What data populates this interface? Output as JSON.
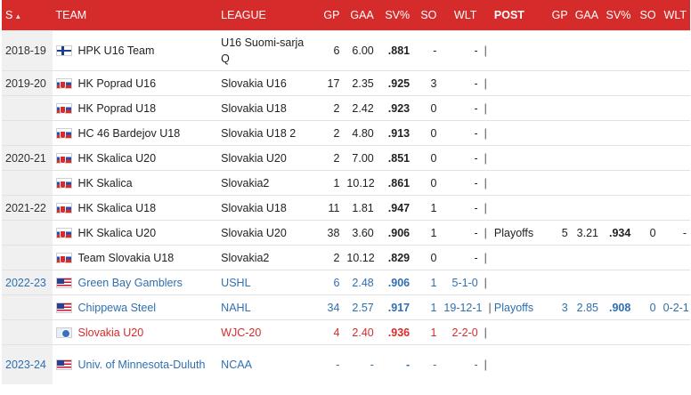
{
  "headers": {
    "season": "S",
    "team": "TEAM",
    "league": "LEAGUE",
    "gp": "GP",
    "gaa": "GAA",
    "svp": "SV%",
    "so": "SO",
    "wlt": "WLT",
    "post": "POST",
    "post_gp": "GP",
    "post_gaa": "GAA",
    "post_svp": "SV%",
    "post_so": "SO",
    "post_wlt": "WLT"
  },
  "colors": {
    "header_bg": "#d62b2b",
    "link_blue": "#2e6fb0",
    "highlight_red": "#d62b2b"
  },
  "rows": [
    {
      "season": "2018-19",
      "flag": "fin",
      "team": "HPK U16 Team",
      "league": "U16 Suomi-sarja Q",
      "gp": "6",
      "gaa": "6.00",
      "svp": ".881",
      "so": "-",
      "wlt": "-",
      "post": "",
      "pgp": "",
      "pgaa": "",
      "psvp": "",
      "pso": "",
      "pwlt": ""
    },
    {
      "season": "2019-20",
      "flag": "svk",
      "team": "HK Poprad U16",
      "league": "Slovakia U16",
      "gp": "17",
      "gaa": "2.35",
      "svp": ".925",
      "so": "3",
      "wlt": "-",
      "post": "",
      "pgp": "",
      "pgaa": "",
      "psvp": "",
      "pso": "",
      "pwlt": ""
    },
    {
      "season": "",
      "flag": "svk",
      "team": "HK Poprad U18",
      "league": "Slovakia U18",
      "gp": "2",
      "gaa": "2.42",
      "svp": ".923",
      "so": "0",
      "wlt": "-",
      "post": "",
      "pgp": "",
      "pgaa": "",
      "psvp": "",
      "pso": "",
      "pwlt": ""
    },
    {
      "season": "",
      "flag": "svk",
      "team": "HC 46 Bardejov U18",
      "league": "Slovakia U18 2",
      "gp": "2",
      "gaa": "4.80",
      "svp": ".913",
      "so": "0",
      "wlt": "-",
      "post": "",
      "pgp": "",
      "pgaa": "",
      "psvp": "",
      "pso": "",
      "pwlt": ""
    },
    {
      "season": "2020-21",
      "flag": "svk",
      "team": "HK Skalica U20",
      "league": "Slovakia U20",
      "gp": "2",
      "gaa": "7.00",
      "svp": ".851",
      "so": "0",
      "wlt": "-",
      "post": "",
      "pgp": "",
      "pgaa": "",
      "psvp": "",
      "pso": "",
      "pwlt": ""
    },
    {
      "season": "",
      "flag": "svk",
      "team": "HK Skalica",
      "league": "Slovakia2",
      "gp": "1",
      "gaa": "10.12",
      "svp": ".861",
      "so": "0",
      "wlt": "-",
      "post": "",
      "pgp": "",
      "pgaa": "",
      "psvp": "",
      "pso": "",
      "pwlt": ""
    },
    {
      "season": "2021-22",
      "flag": "svk",
      "team": "HK Skalica U18",
      "league": "Slovakia U18",
      "gp": "11",
      "gaa": "1.81",
      "svp": ".947",
      "so": "1",
      "wlt": "-",
      "post": "",
      "pgp": "",
      "pgaa": "",
      "psvp": "",
      "pso": "",
      "pwlt": ""
    },
    {
      "season": "",
      "flag": "svk",
      "team": "HK Skalica U20",
      "league": "Slovakia U20",
      "gp": "38",
      "gaa": "3.60",
      "svp": ".906",
      "so": "1",
      "wlt": "-",
      "post": "Playoffs",
      "pgp": "5",
      "pgaa": "3.21",
      "psvp": ".934",
      "pso": "0",
      "pwlt": "-"
    },
    {
      "season": "",
      "flag": "svk",
      "team": "Team Slovakia U18",
      "league": "Slovakia2",
      "gp": "2",
      "gaa": "10.12",
      "svp": ".829",
      "so": "0",
      "wlt": "-",
      "post": "",
      "pgp": "",
      "pgaa": "",
      "psvp": "",
      "pso": "",
      "pwlt": ""
    },
    {
      "season": "2022-23",
      "flag": "usa",
      "team": "Green Bay Gamblers",
      "league": "USHL",
      "gp": "6",
      "gaa": "2.48",
      "svp": ".906",
      "so": "1",
      "wlt": "5-1-0",
      "post": "",
      "pgp": "",
      "pgaa": "",
      "psvp": "",
      "pso": "",
      "pwlt": ""
    },
    {
      "season": "",
      "flag": "usa",
      "team": "Chippewa Steel",
      "league": "NAHL",
      "gp": "34",
      "gaa": "2.57",
      "svp": ".917",
      "so": "1",
      "wlt": "19-12-1",
      "post": "Playoffs",
      "pgp": "3",
      "pgaa": "2.85",
      "psvp": ".908",
      "pso": "0",
      "pwlt": "0-2-1"
    },
    {
      "season": "",
      "flag": "iihf",
      "team": "Slovakia U20",
      "league": "WJC-20",
      "gp": "4",
      "gaa": "2.40",
      "svp": ".936",
      "so": "1",
      "wlt": "2-2-0",
      "post": "",
      "pgp": "",
      "pgaa": "",
      "psvp": "",
      "pso": "",
      "pwlt": ""
    },
    {
      "season": "2023-24",
      "flag": "usa",
      "team": "Univ. of Minnesota-Duluth",
      "league": "NCAA",
      "gp": "-",
      "gaa": "-",
      "svp": "-",
      "so": "-",
      "wlt": "-",
      "post": "",
      "pgp": "",
      "pgaa": "",
      "psvp": "",
      "pso": "",
      "pwlt": ""
    }
  ]
}
